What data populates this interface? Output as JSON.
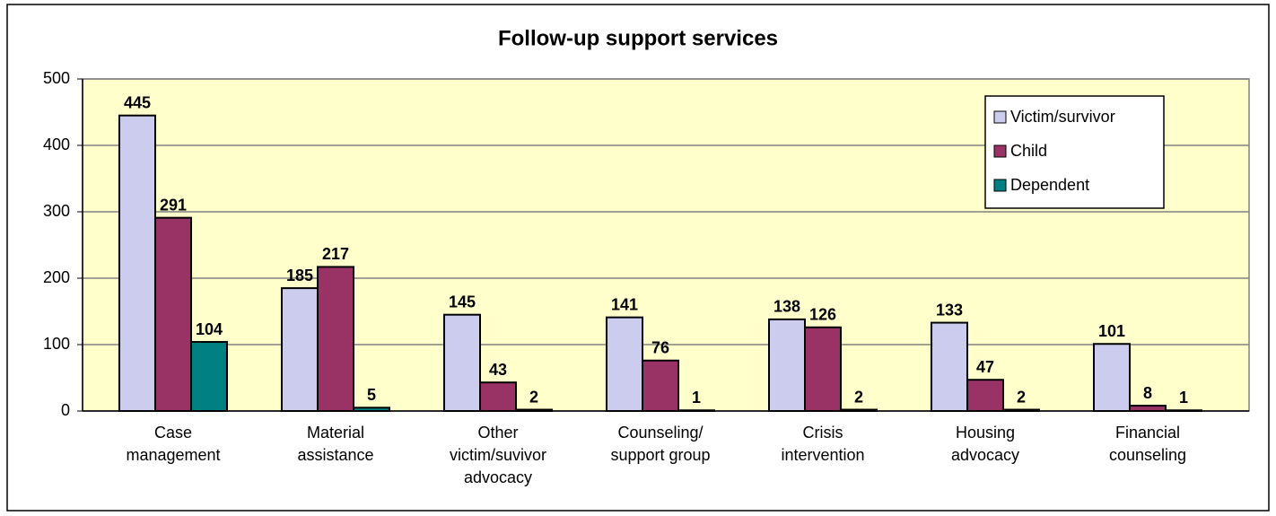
{
  "chart_data": {
    "type": "bar",
    "title": "Follow-up support services",
    "categories": [
      "Case\nmanagement",
      "Material\nassistance",
      "Other\nvictim/suvivor\nadvocacy",
      "Counseling/\nsupport group",
      "Crisis\nintervention",
      "Housing\nadvocacy",
      "Financial\ncounseling"
    ],
    "series": [
      {
        "name": "Victim/survivor",
        "color": "#ccccee",
        "values": [
          445,
          185,
          145,
          141,
          138,
          133,
          101
        ]
      },
      {
        "name": "Child",
        "color": "#993366",
        "values": [
          291,
          217,
          43,
          76,
          126,
          47,
          8
        ]
      },
      {
        "name": "Dependent",
        "color": "#008080",
        "values": [
          104,
          5,
          2,
          1,
          2,
          2,
          1
        ]
      }
    ],
    "ylim": [
      0,
      500
    ],
    "yticks": [
      0,
      100,
      200,
      300,
      400,
      500
    ],
    "grid": true,
    "legend": "upper right"
  }
}
